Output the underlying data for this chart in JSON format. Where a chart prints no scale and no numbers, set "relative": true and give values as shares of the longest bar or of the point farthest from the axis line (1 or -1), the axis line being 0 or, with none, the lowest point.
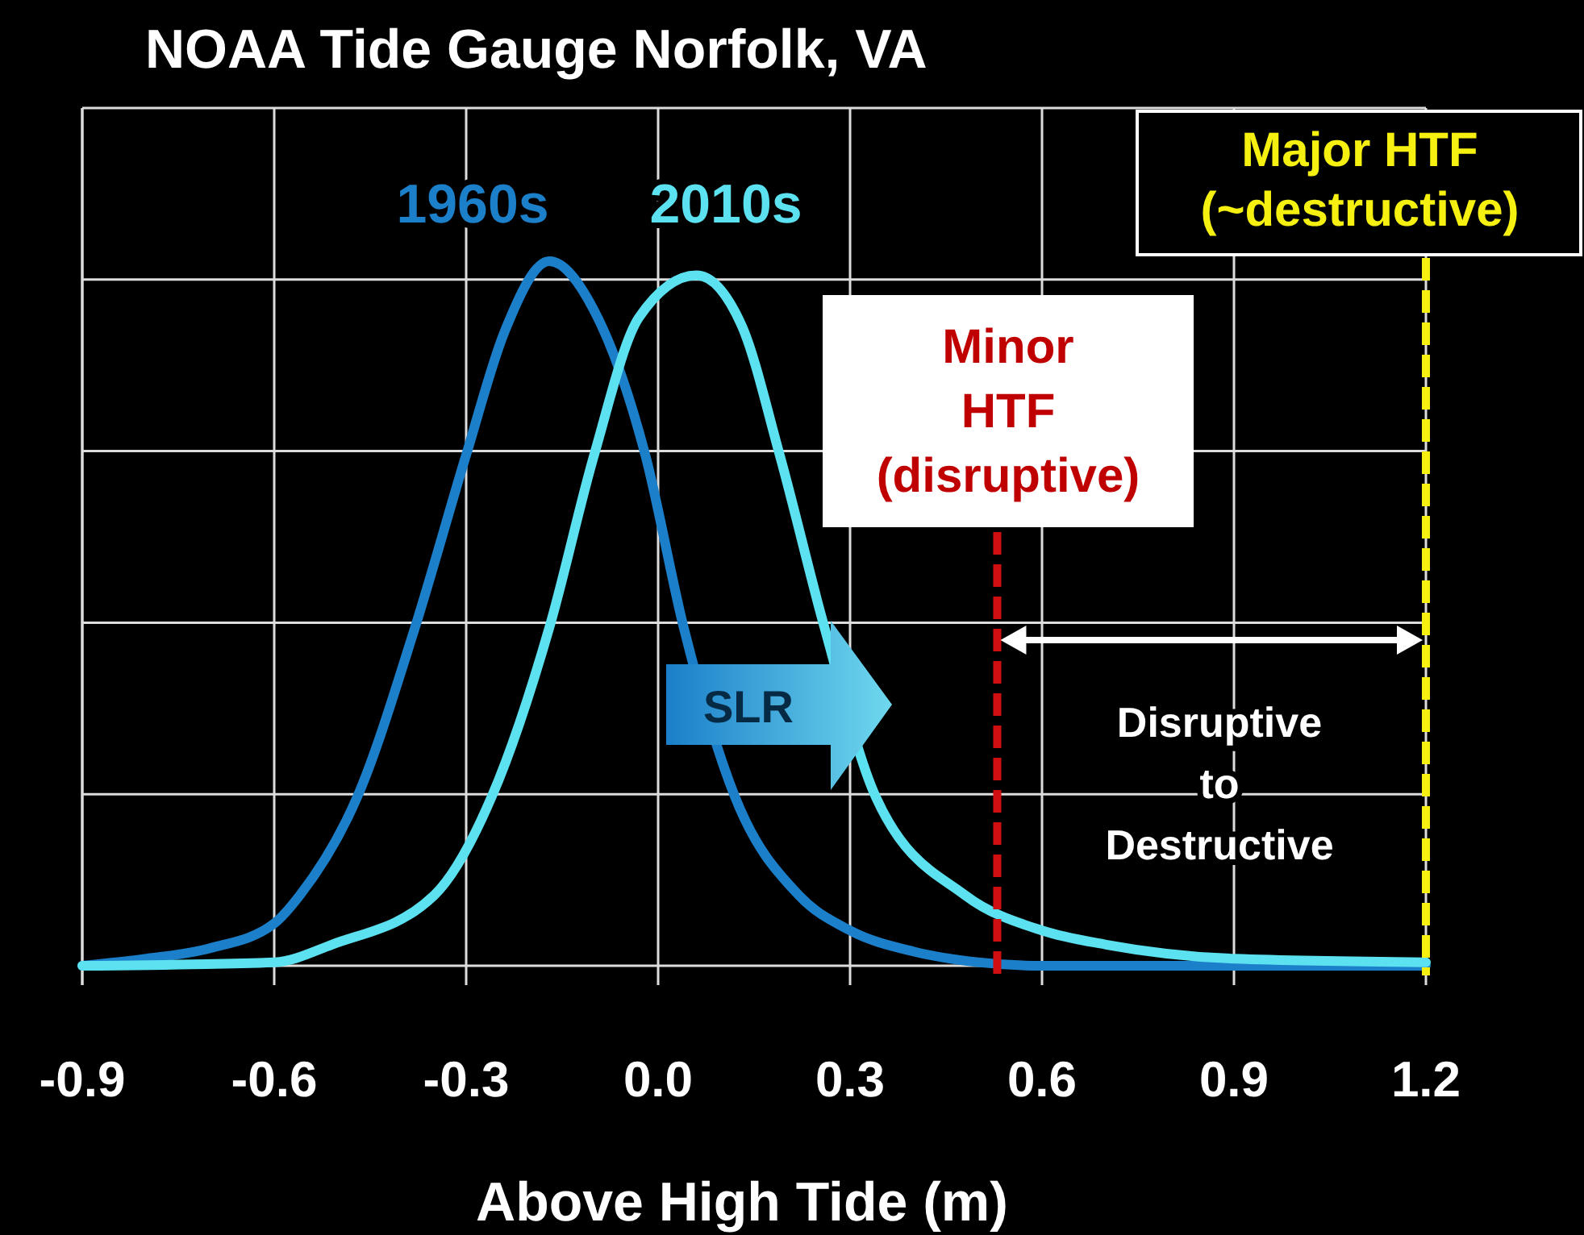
{
  "chart_data": {
    "type": "line",
    "title": "NOAA Tide Gauge Norfolk, VA",
    "xlabel": "Above High Tide (m)",
    "relative": true,
    "xlim": [
      -0.9,
      1.2
    ],
    "xticks": [
      -0.9,
      -0.6,
      -0.3,
      {
        "value": 0,
        "label": "0.0"
      },
      0.3,
      0.6,
      0.9,
      1.2
    ],
    "grid": true,
    "legend": false,
    "line_style": "solid",
    "marker": "none",
    "series": [
      {
        "name": "1960s",
        "color": "#1b7fc9",
        "x": [
          -0.9,
          -0.8,
          -0.7,
          -0.6,
          -0.56,
          -0.47,
          -0.38,
          -0.3,
          -0.24,
          -0.17,
          -0.1,
          -0.02,
          0.04,
          0.12,
          0.22,
          0.3,
          0.4,
          0.5,
          0.6,
          0.9,
          1.2
        ],
        "values": [
          0,
          0.01,
          0.025,
          0.06,
          0.1,
          0.24,
          0.48,
          0.725,
          0.9,
          1,
          0.93,
          0.725,
          0.48,
          0.24,
          0.1,
          0.05,
          0.02,
          0.005,
          0,
          0,
          0
        ]
      },
      {
        "name": "2010s",
        "color": "#5ce1f0",
        "x": [
          -0.9,
          -0.6,
          -0.51,
          -0.35,
          -0.26,
          -0.17,
          -0.1,
          -0.03,
          0.06,
          0.13,
          0.19,
          0.26,
          0.34,
          0.48,
          0.6,
          0.7,
          0.9,
          1.2
        ],
        "values": [
          0,
          0.005,
          0.03,
          0.1,
          0.24,
          0.48,
          0.725,
          0.92,
          0.98,
          0.91,
          0.725,
          0.48,
          0.24,
          0.1,
          0.05,
          0.03,
          0.01,
          0.005
        ]
      }
    ],
    "ref_lines": [
      {
        "axis": "x",
        "value": 0.53,
        "label": "Minor\nHTF\n(disruptive)",
        "color": "#d01010",
        "line_style": "dashed"
      },
      {
        "axis": "x",
        "value": 1.2,
        "label": "Major HTF\n(~destructive)",
        "color": "#f5f010",
        "line_style": "dashed"
      }
    ],
    "annotations": [
      "Disruptive\nto\nDestructive",
      "SLR"
    ]
  }
}
